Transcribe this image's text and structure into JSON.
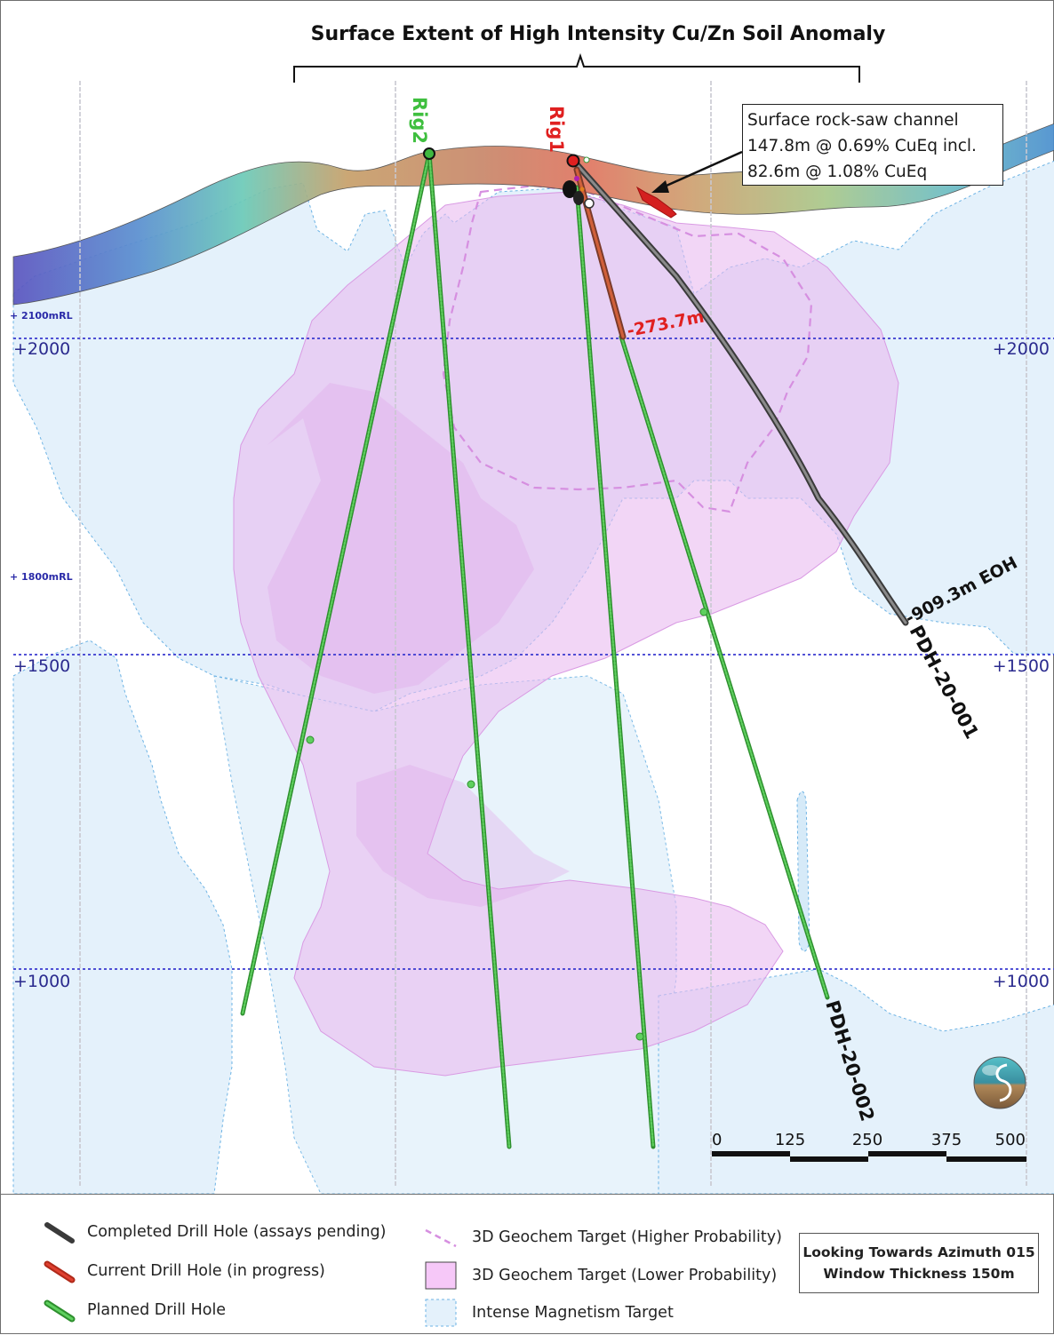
{
  "title": "Surface Extent of High Intensity Cu/Zn Soil Anomaly",
  "rigs": {
    "rig1": "Rig1",
    "rig2": "Rig2"
  },
  "callout": {
    "line1": "Surface rock-saw channel",
    "line2": "147.8m @ 0.69% CuEq incl.",
    "line3": "82.6m @ 1.08% CuEq"
  },
  "depth_labels": {
    "current_depth": "-273.7m",
    "eoh": "-909.3m EOH"
  },
  "hole_labels": {
    "hole1": "PDH-20-001",
    "hole2": "PDH-20-002"
  },
  "rl_labels": {
    "rl2100": "+ 2100mRL",
    "rl1800": "+ 1800mRL"
  },
  "elevations": [
    "+2000",
    "+1500",
    "+1000"
  ],
  "scale_bar": {
    "ticks": [
      "0",
      "125",
      "250",
      "375",
      "500"
    ]
  },
  "legend": {
    "completed": "Completed Drill Hole (assays pending)",
    "current": "Current Drill Hole (in progress)",
    "planned": "Planned Drill Hole",
    "geochem_high": "3D Geochem Target (Higher Probability)",
    "geochem_low": "3D Geochem Target (Lower Probability)",
    "magnetism": "Intense Magnetism Target"
  },
  "view_note": {
    "line1": "Looking Towards Azimuth 015",
    "line2": "Window Thickness 150m"
  },
  "colors": {
    "completed": "#505050",
    "current": "#d83a2a",
    "planned": "#3fbf3f",
    "geochem_high": "#d890e0",
    "geochem_low": "#f2c8f6",
    "magnetism": "#e3f1fb",
    "grid": "#3a3ad0",
    "label_blue": "#2a2a9e"
  }
}
